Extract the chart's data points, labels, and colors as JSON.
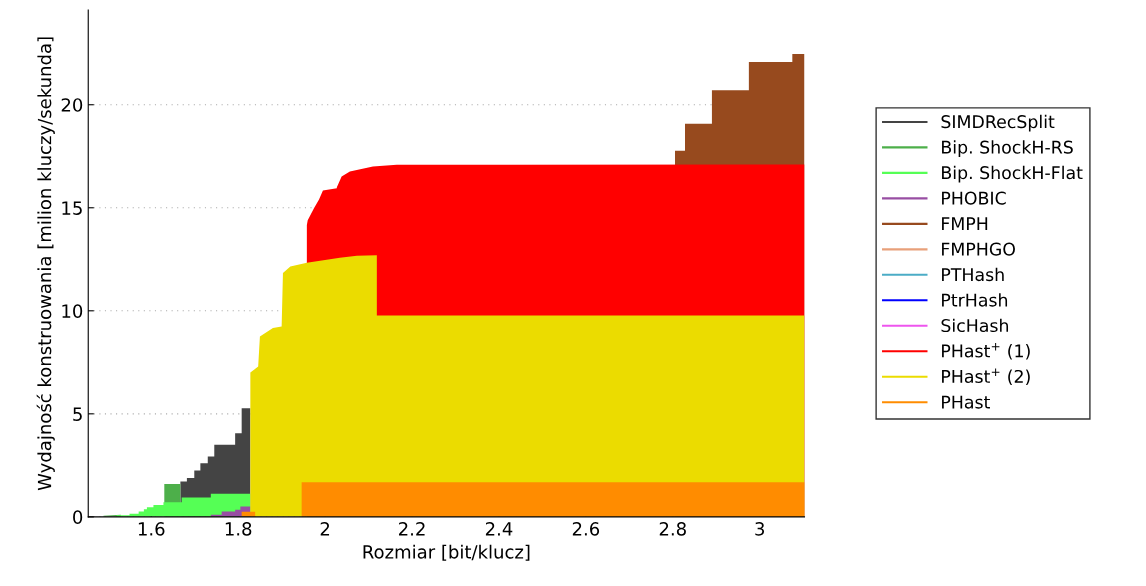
{
  "chart_data": {
    "type": "area",
    "xlabel": "Rozmiar [bit/klucz]",
    "ylabel": "Wydajność konstruowania [milion kluczy/sekunda]",
    "xlim": [
      1.455,
      3.103
    ],
    "ylim": [
      0,
      24.6
    ],
    "xticks": [
      1.6,
      1.8,
      2,
      2.2,
      2.4,
      2.6,
      2.8,
      3
    ],
    "yticks": [
      0,
      5,
      10,
      15,
      20
    ],
    "grid": "y",
    "legend": "right",
    "series": [
      {
        "name": "SIMDRecSplit",
        "color": "#444444",
        "x": [
          1.667,
          1.682,
          1.682,
          1.699,
          1.699,
          1.713,
          1.713,
          1.73,
          1.73,
          1.745,
          1.745,
          1.793,
          1.793,
          1.808,
          1.808,
          1.828
        ],
        "values": [
          1.71,
          1.71,
          1.88,
          1.88,
          2.25,
          2.25,
          2.6,
          2.6,
          2.93,
          2.93,
          3.5,
          3.5,
          4.06,
          4.06,
          5.27,
          5.27
        ]
      },
      {
        "name": "Bip. ShockH-RS",
        "color": "#4daf4a",
        "x": [
          1.49,
          1.53,
          1.56,
          1.63,
          1.667
        ],
        "values": [
          0.05,
          0.1,
          null,
          1.6,
          1.6
        ]
      },
      {
        "name": "Bip. ShockH-Flat",
        "color": "#55ff55",
        "x": [
          1.52,
          1.55,
          1.55,
          1.571,
          1.571,
          1.583,
          1.583,
          1.59,
          1.59,
          1.605,
          1.605,
          1.628,
          1.628,
          1.67,
          1.67,
          1.737,
          1.737,
          1.828
        ],
        "values": [
          0.08,
          0.08,
          0.15,
          0.15,
          0.26,
          0.26,
          0.37,
          0.37,
          0.47,
          0.47,
          0.58,
          0.58,
          0.71,
          0.71,
          0.94,
          0.94,
          1.12,
          1.12
        ]
      },
      {
        "name": "PHOBIC",
        "color": "#984ea3",
        "x": [
          1.737,
          1.762,
          1.762,
          1.793,
          1.793,
          1.805,
          1.805,
          1.828
        ],
        "values": [
          0.1,
          0.1,
          0.26,
          0.26,
          0.34,
          0.34,
          0.5,
          0.5
        ]
      },
      {
        "name": "FMPH",
        "color": "#974a1e",
        "x": [
          2.805,
          2.828,
          2.828,
          2.89,
          2.89,
          2.975,
          2.975,
          3.075,
          3.075,
          3.103
        ],
        "values": [
          17.77,
          17.77,
          19.08,
          19.08,
          20.7,
          20.7,
          22.07,
          22.07,
          22.46,
          22.46
        ]
      },
      {
        "name": "FMPHGO",
        "color": "#e8a07a"
      },
      {
        "name": "PTHash",
        "color": "#4bacc6"
      },
      {
        "name": "PtrHash",
        "color": "#0000ff"
      },
      {
        "name": "SicHash",
        "color": "#ee55ee"
      },
      {
        "name": "PHast$^{+}$ (1)",
        "color": "#ff0000",
        "x": [
          1.958,
          1.96,
          1.975,
          1.986,
          1.995,
          2.027,
          2.027,
          2.038,
          2.057,
          2.11,
          2.165,
          3.103
        ],
        "values": [
          14.17,
          14.4,
          15.0,
          15.4,
          15.84,
          15.95,
          16.0,
          16.52,
          16.76,
          17.0,
          17.09,
          17.1
        ]
      },
      {
        "name": "PHast$^{+}$ (2)",
        "color": "#ebdc00",
        "x": [
          1.828,
          1.846,
          1.85,
          1.88,
          1.9,
          1.903,
          1.92,
          1.958,
          2.034,
          2.073,
          2.119,
          2.119,
          3.103
        ],
        "values": [
          7.0,
          7.3,
          8.75,
          9.17,
          9.24,
          11.84,
          12.15,
          12.33,
          12.57,
          12.67,
          12.7,
          9.77,
          9.77
        ]
      },
      {
        "name": "PHast",
        "color": "#ff8c00",
        "x": [
          1.808,
          1.839,
          1.84,
          1.946,
          3.103
        ],
        "values": [
          0.25,
          0.25,
          null,
          1.68,
          1.68
        ]
      }
    ]
  }
}
